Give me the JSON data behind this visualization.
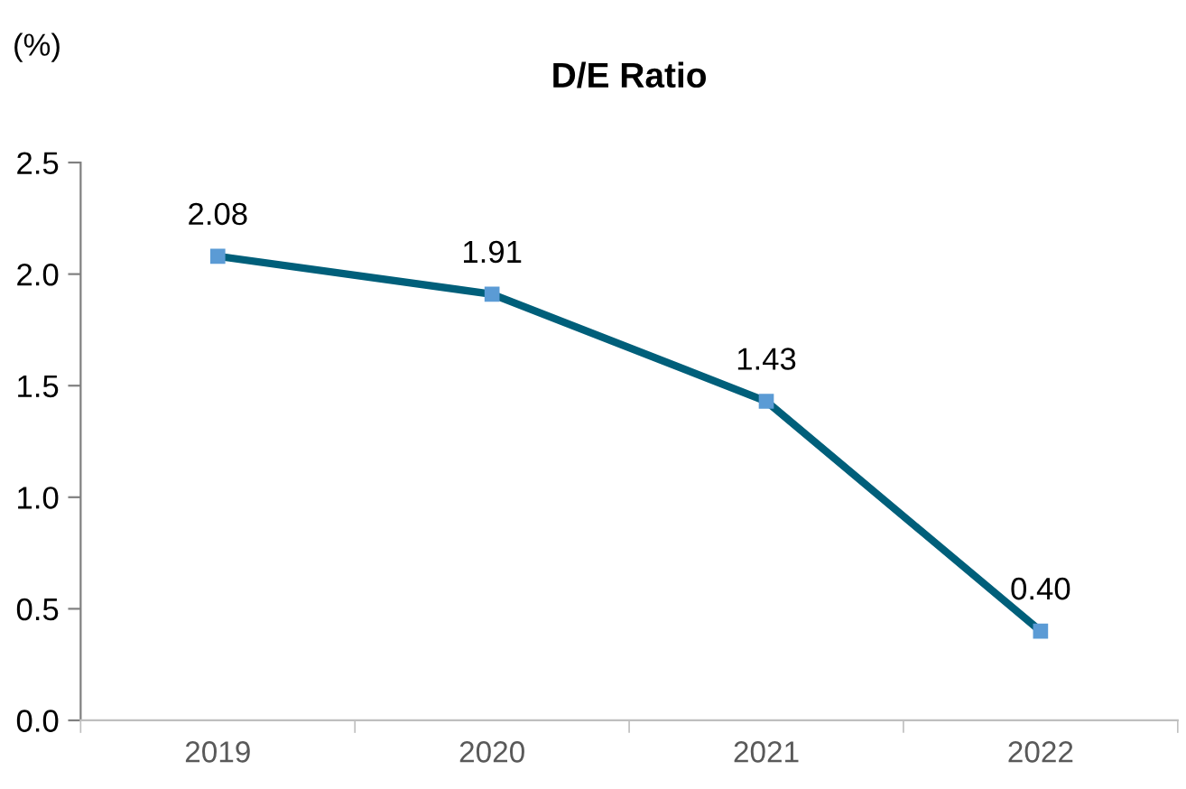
{
  "chart_data": {
    "type": "line",
    "title": "D/E Ratio",
    "ylabel": "(%)",
    "categories": [
      "2019",
      "2020",
      "2021",
      "2022"
    ],
    "series": [
      {
        "color": "#005f7a",
        "colors": [
          "#5b9bd5",
          "#5b9bd5",
          "#5b9bd5",
          "#5b9bd5"
        ],
        "values": [
          2.08,
          1.91,
          1.43,
          0.4
        ],
        "value_labels": [
          "2.08",
          "1.91",
          "1.43",
          "0.40"
        ]
      }
    ],
    "ylim": [
      0,
      2.5
    ],
    "yticks": [
      {
        "value": 0,
        "label": "0.0"
      },
      {
        "value": 0.5,
        "label": "0.5"
      },
      {
        "value": 1,
        "label": "1.0"
      },
      {
        "value": 1.5,
        "label": "1.5"
      },
      {
        "value": 2,
        "label": "2.0"
      },
      {
        "value": 2.5,
        "label": "2.5"
      }
    ],
    "grid": false,
    "legend": false,
    "marker": "square",
    "line_style": "solid"
  }
}
